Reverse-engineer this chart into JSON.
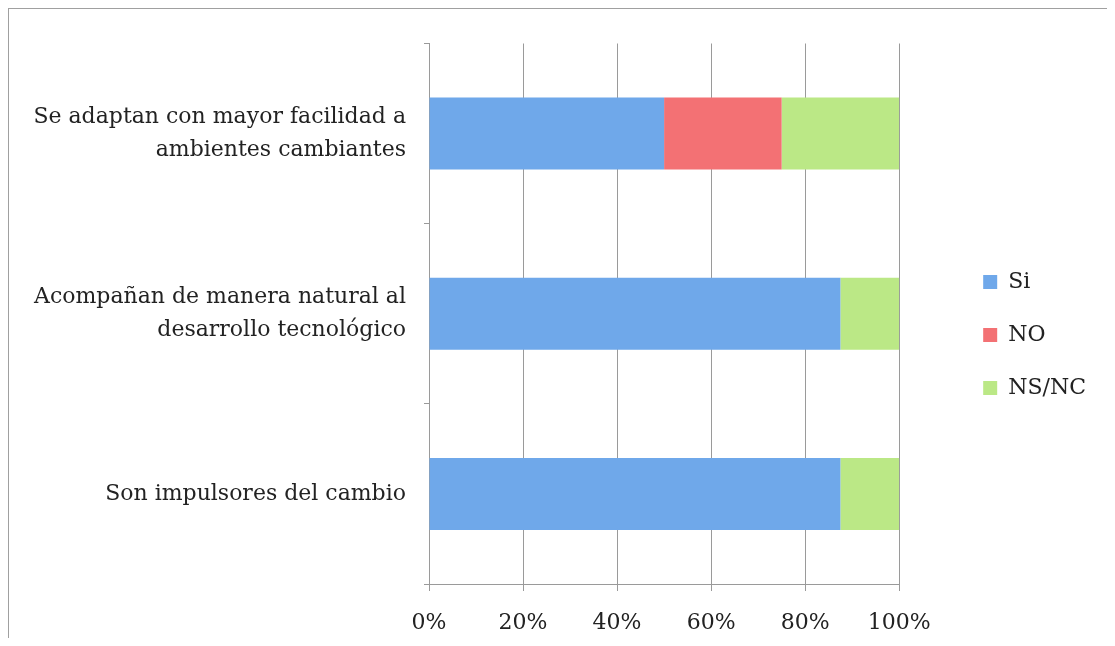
{
  "chart_data": {
    "type": "bar",
    "orientation": "horizontal",
    "stacked": true,
    "categories": [
      "Se adaptan con mayor facilidad a ambientes cambiantes",
      "Acompañan de manera natural al desarrollo tecnológico",
      "Son impulsores del cambio"
    ],
    "series": [
      {
        "name": "Si",
        "color": "#6fa8ea",
        "values": [
          50,
          87.5,
          87.5
        ]
      },
      {
        "name": "NO",
        "color": "#f37174",
        "values": [
          25,
          0,
          0
        ]
      },
      {
        "name": "NS/NC",
        "color": "#bbe886",
        "values": [
          25,
          12.5,
          12.5
        ]
      }
    ],
    "xlim": [
      0,
      100
    ],
    "xticks": [
      {
        "value": 0,
        "label": "0%"
      },
      {
        "value": 20,
        "label": "20%"
      },
      {
        "value": 40,
        "label": "40%"
      },
      {
        "value": 60,
        "label": "60%"
      },
      {
        "value": 80,
        "label": "80%"
      },
      {
        "value": 100,
        "label": "100%"
      }
    ],
    "grid": "x",
    "legend": "right"
  }
}
